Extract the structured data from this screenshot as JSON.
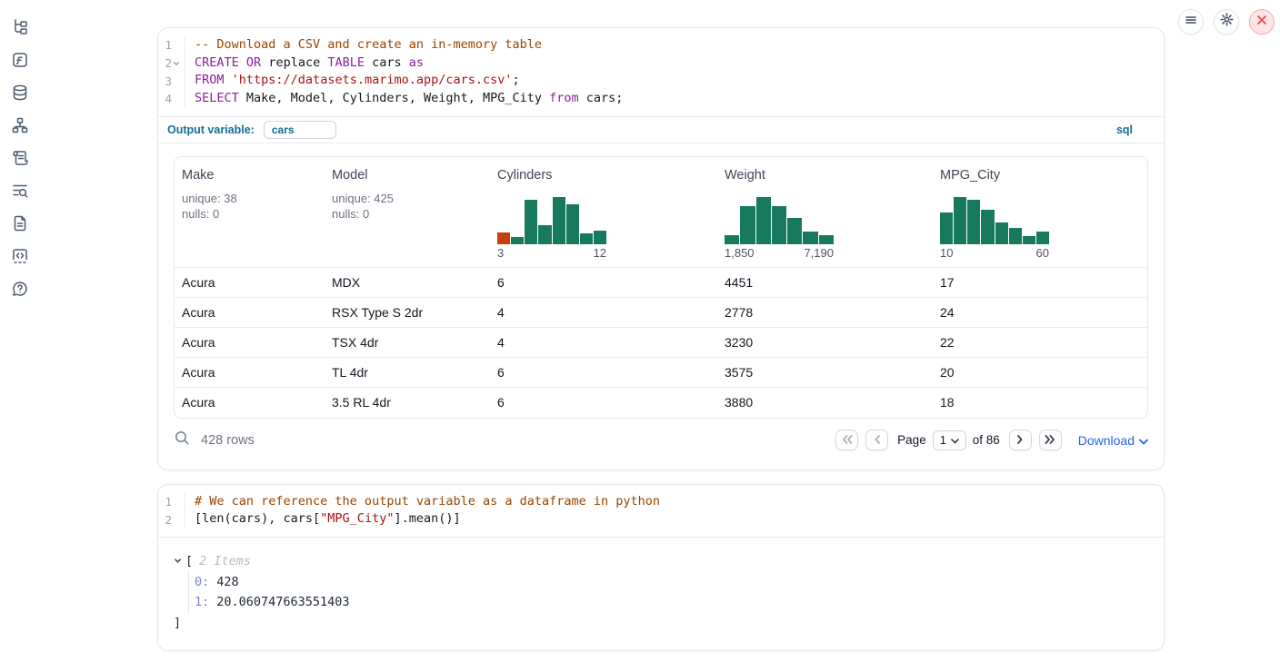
{
  "topbar": {
    "buttons": [
      {
        "name": "menu"
      },
      {
        "name": "settings"
      },
      {
        "name": "close"
      }
    ]
  },
  "sidebar": {
    "items": [
      {
        "name": "file-tree"
      },
      {
        "name": "variables"
      },
      {
        "name": "datasources"
      },
      {
        "name": "dependency-graph"
      },
      {
        "name": "scratchpad"
      },
      {
        "name": "logs"
      },
      {
        "name": "documentation"
      },
      {
        "name": "snippets"
      },
      {
        "name": "help"
      }
    ]
  },
  "sql_cell": {
    "line_numbers": [
      "1",
      "2",
      "3",
      "4"
    ],
    "code": [
      [
        [
          "comment",
          "-- Download a CSV and create an in-memory table"
        ]
      ],
      [
        [
          "keyword",
          "CREATE"
        ],
        [
          "plain",
          " "
        ],
        [
          "keyword",
          "OR"
        ],
        [
          "plain",
          " replace "
        ],
        [
          "keyword",
          "TABLE"
        ],
        [
          "plain",
          " cars "
        ],
        [
          "keyword",
          "as"
        ]
      ],
      [
        [
          "keyword",
          "FROM"
        ],
        [
          "plain",
          " "
        ],
        [
          "string",
          "'https://datasets.marimo.app/cars.csv'"
        ],
        [
          "plain",
          ";"
        ]
      ],
      [
        [
          "keyword",
          "SELECT"
        ],
        [
          "plain",
          " Make, Model, Cylinders, Weight, MPG_City "
        ],
        [
          "keyword",
          "from"
        ],
        [
          "plain",
          " cars;"
        ]
      ]
    ],
    "output_variable_label": "Output variable:",
    "output_variable_value": "cars",
    "language_badge": "sql",
    "table": {
      "columns": [
        {
          "name": "Make",
          "unique": "unique: 38",
          "nulls": "nulls: 0"
        },
        {
          "name": "Model",
          "unique": "unique: 425",
          "nulls": "nulls: 0"
        },
        {
          "name": "Cylinders",
          "hist": {
            "values": [
              0.25,
              0.16,
              0.94,
              0.41,
              1.0,
              0.84,
              0.24,
              0.29
            ],
            "color": "#17795e",
            "bar_colors": [
              "#c2410c"
            ],
            "min_label": "3",
            "max_label": "12"
          }
        },
        {
          "name": "Weight",
          "hist": {
            "values": [
              0.19,
              0.81,
              1.0,
              0.8,
              0.56,
              0.26,
              0.2
            ],
            "color": "#17795e",
            "min_label": "1,850",
            "max_label": "7,190"
          }
        },
        {
          "name": "MPG_City",
          "hist": {
            "values": [
              0.67,
              1.0,
              0.94,
              0.73,
              0.46,
              0.35,
              0.17,
              0.27
            ],
            "color": "#17795e",
            "min_label": "10",
            "max_label": "60"
          }
        }
      ],
      "rows": [
        [
          "Acura",
          "MDX",
          "6",
          "4451",
          "17"
        ],
        [
          "Acura",
          "RSX Type S 2dr",
          "4",
          "2778",
          "24"
        ],
        [
          "Acura",
          "TSX 4dr",
          "4",
          "3230",
          "22"
        ],
        [
          "Acura",
          "TL 4dr",
          "6",
          "3575",
          "20"
        ],
        [
          "Acura",
          "3.5 RL 4dr",
          "6",
          "3880",
          "18"
        ]
      ]
    },
    "footer": {
      "row_count": "428 rows",
      "page_label": "Page",
      "page_value": "1",
      "of_label": "of 86",
      "download_label": "Download"
    }
  },
  "python_cell": {
    "line_numbers": [
      "1",
      "2"
    ],
    "code": [
      [
        [
          "comment",
          "# We can reference the output variable as a dataframe in python"
        ]
      ],
      [
        [
          "plain",
          "[len(cars), cars["
        ],
        [
          "string",
          "\"MPG_City\""
        ],
        [
          "plain",
          "].mean()]"
        ]
      ]
    ],
    "output": {
      "open_bracket": "[",
      "items_label": "2 Items",
      "entries": [
        {
          "key": "0:",
          "value": "428"
        },
        {
          "key": "1:",
          "value": "20.060747663551403"
        }
      ],
      "close_bracket": "]"
    }
  },
  "colors": {
    "hist_green": "#17795e",
    "hist_orange": "#c2410c",
    "accent_teal": "#0e6e94",
    "link_blue": "#2563eb",
    "close_red": "#e24c4c"
  }
}
